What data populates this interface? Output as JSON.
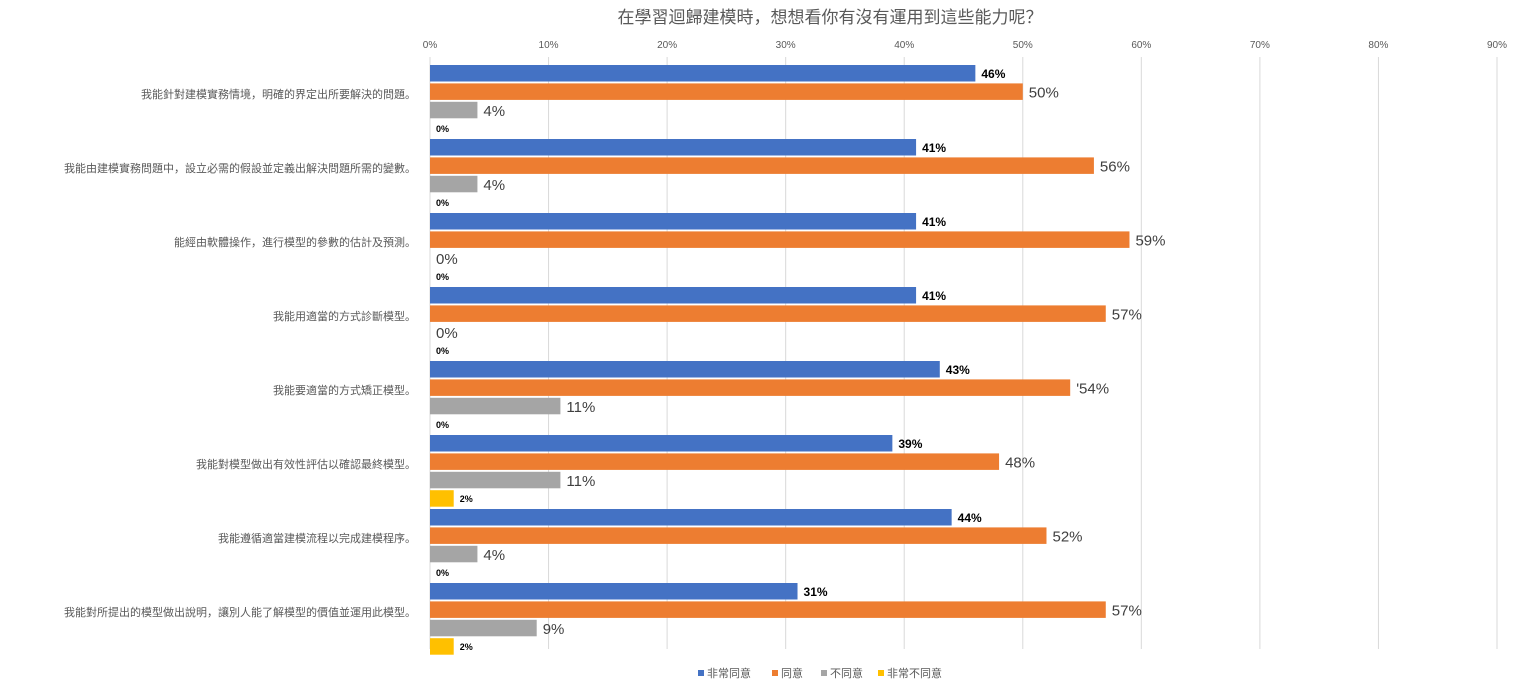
{
  "chart_data": {
    "type": "bar",
    "orientation": "horizontal",
    "title": "在學習迴歸建模時，想想看你有沒有運用到這些能力呢？",
    "categories": [
      "我能針對建模實務情境，明確的界定出所要解決的問題。",
      "我能由建模實務問題中，設立必需的假設並定義出解決問題所需的變數。",
      "能經由軟體操作，進行模型的參數的估計及預測。",
      "我能用適當的方式診斷模型。",
      "我能要適當的方式矯正模型。",
      "我能對模型做出有效性評估以確認最終模型。",
      "我能遵循適當建模流程以完成建模程序。",
      "我能對所提出的模型做出說明，讓別人能了解模型的價值並運用此模型。"
    ],
    "series": [
      {
        "name": "非常同意",
        "color": "#4472c4",
        "values": [
          46,
          41,
          41,
          41,
          43,
          39,
          44,
          31
        ],
        "labels": [
          "46%",
          "41%",
          "41%",
          "41%",
          "43%",
          "39%",
          "44%",
          "31%"
        ]
      },
      {
        "name": "同意",
        "color": "#ed7d31",
        "values": [
          50,
          56,
          59,
          57,
          54,
          48,
          52,
          57
        ],
        "labels": [
          "50%",
          "56%",
          "59%",
          "57%",
          "'54%",
          "48%",
          "52%",
          "57%"
        ]
      },
      {
        "name": "不同意",
        "color": "#a5a5a5",
        "values": [
          4,
          4,
          0,
          0,
          11,
          11,
          4,
          9
        ],
        "labels": [
          "4%",
          "4%",
          "0%",
          "0%",
          "11%",
          "11%",
          "4%",
          "9%"
        ]
      },
      {
        "name": "非常不同意",
        "color": "#ffc000",
        "values": [
          0,
          0,
          0,
          0,
          0,
          2,
          0,
          2
        ],
        "labels": [
          "0%",
          "0%",
          "0%",
          "0%",
          "0%",
          "2%",
          "0%",
          "2%"
        ]
      }
    ],
    "xlim": [
      0,
      90
    ],
    "xticks": [
      "0%",
      "10%",
      "20%",
      "30%",
      "40%",
      "50%",
      "60%",
      "70%",
      "80%",
      "90%"
    ],
    "xaxis_position": "top",
    "grid": true,
    "legend_position": "bottom",
    "value_unit": "%"
  }
}
